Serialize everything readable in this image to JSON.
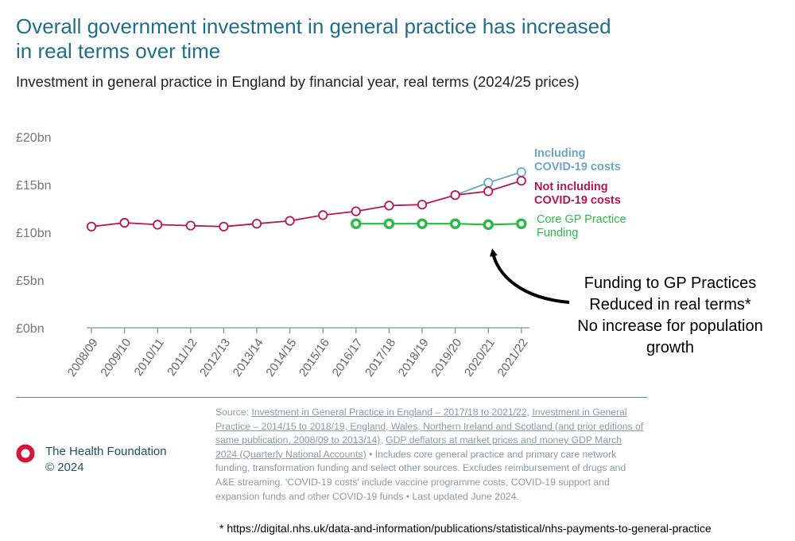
{
  "header": {
    "title": "Overall government investment in general practice has increased in real terms over time",
    "subtitle": "Investment in general practice in England by financial year, real terms (2024/25 prices)"
  },
  "chart_data": {
    "type": "line",
    "categories": [
      "2008/09",
      "2009/10",
      "2010/11",
      "2011/12",
      "2012/13",
      "2013/14",
      "2014/15",
      "2015/16",
      "2016/17",
      "2017/18",
      "2018/19",
      "2019/20",
      "2020/21",
      "2021/22"
    ],
    "y_ticks": [
      "£0bn",
      "£5bn",
      "£10bn",
      "£15bn",
      "£20bn"
    ],
    "ylim": [
      0,
      20
    ],
    "grid": false,
    "series": [
      {
        "name": "Including COVID-19 costs",
        "color": "#6aa6c8",
        "values": [
          null,
          null,
          null,
          null,
          null,
          null,
          null,
          null,
          null,
          null,
          null,
          13.9,
          15.2,
          16.3
        ]
      },
      {
        "name": "Not including COVID-19 costs",
        "color": "#b5174a",
        "values": [
          10.6,
          11.0,
          10.8,
          10.7,
          10.6,
          10.9,
          11.2,
          11.8,
          12.2,
          12.8,
          12.9,
          13.9,
          14.3,
          15.4
        ]
      },
      {
        "name": "Core GP Practice Funding",
        "color": "#2fb84a",
        "values": [
          null,
          null,
          null,
          null,
          null,
          null,
          null,
          null,
          10.9,
          10.9,
          10.9,
          10.9,
          10.8,
          10.9
        ]
      }
    ],
    "series_labels": [
      {
        "lines": [
          "Including",
          "COVID-19 costs"
        ],
        "color": "#6aa6c8"
      },
      {
        "lines": [
          "Not including",
          "COVID-19 costs"
        ],
        "color": "#b5174a"
      },
      {
        "lines": [
          "Core GP Practice",
          "Funding"
        ],
        "color": "#2fb84a"
      }
    ],
    "annotation": {
      "lines": [
        "Funding to GP Practices",
        "Reduced in real terms*",
        "No increase for population",
        "growth"
      ],
      "arrow_target": "2020/21 Core GP Practice Funding"
    }
  },
  "footer": {
    "org_name": "The Health Foundation",
    "copyright": "© 2024",
    "source_label": "Source: ",
    "source_link_1": "Investment in General Practice in England – 2017/18 to 2021/22",
    "sep_1": ", ",
    "source_link_2": "Investment in General Practice – 2014/15 to 2018/19, England, Wales, Northern Ireland and Scotland (and prior editions of same publication, 2008/09 to 2013/14)",
    "sep_2": ", ",
    "source_link_3": "GDP deflators at market prices and money GDP March 2024 (Quarterly National Accounts)",
    "source_rest": " • Includes core general practice and primary care network funding, transformation funding and select other sources. Excludes reimbursement of drugs and A&E streaming. 'COVID-19 costs' include vaccine programme costs, COVID-19 support and expansion funds and other COVID-19 funds • Last updated June 2024.",
    "footnote": "* https://digital.nhs.uk/data-and-information/publications/statistical/nhs-payments-to-general-practice",
    "logo_color": "#d2143a"
  }
}
